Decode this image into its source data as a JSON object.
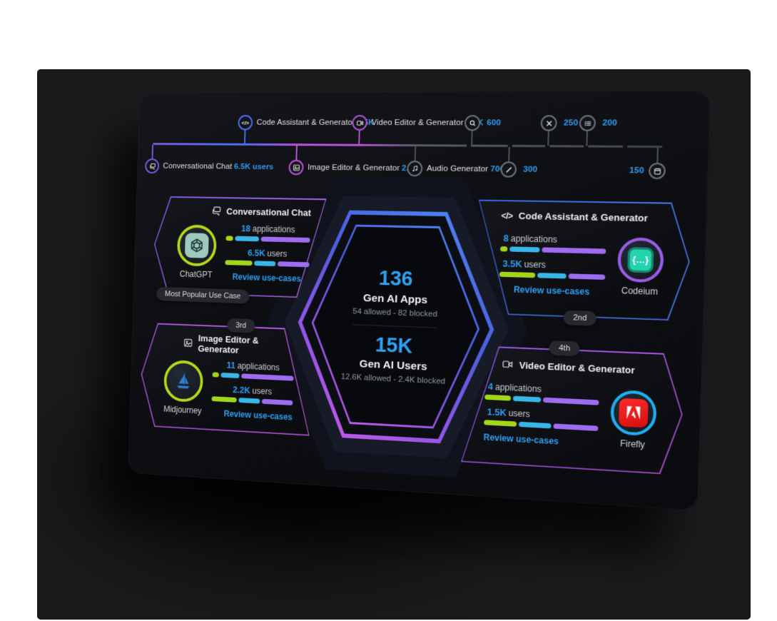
{
  "timeline": {
    "items": [
      {
        "label": "Conversational Chat",
        "value": "6.5K users",
        "icon": "chat-icon",
        "side": "below",
        "color": "#7a5ae0"
      },
      {
        "label": "Code Assistant & Generator",
        "value": "3.5K",
        "icon": "code-icon",
        "side": "above",
        "color": "#4b6ff5"
      },
      {
        "label": "Image Editor & Generator",
        "value": "2.2K",
        "icon": "image-icon",
        "side": "below",
        "color": "#c24fe2"
      },
      {
        "label": "Video Editor & Generator",
        "value": "1.5K",
        "icon": "video-icon",
        "side": "above",
        "color": "#b44fd8"
      },
      {
        "label": "Audio Generator",
        "value": "700",
        "icon": "audio-icon",
        "side": "below",
        "color": "#6b7078"
      },
      {
        "label": "",
        "value": "600",
        "icon": "search-icon",
        "side": "above",
        "color": "#6b7078"
      },
      {
        "label": "",
        "value": "300",
        "icon": "pencil-icon",
        "side": "below",
        "color": "#6b7078"
      },
      {
        "label": "",
        "value": "250",
        "icon": "tools-icon",
        "side": "above",
        "color": "#6b7078"
      },
      {
        "label": "",
        "value": "200",
        "icon": "list-icon",
        "side": "above",
        "color": "#6b7078"
      },
      {
        "label": "",
        "value": "150",
        "icon": "calendar-icon",
        "side": "below",
        "color": "#6b7078"
      }
    ]
  },
  "hexagon": {
    "apps_count": "136",
    "apps_title": "Gen AI Apps",
    "apps_detail": "54 allowed - 82 blocked",
    "users_count": "15K",
    "users_title": "Gen AI Users",
    "users_detail": "12.6K allowed - 2.4K blocked"
  },
  "cards": [
    {
      "title": "Conversational Chat",
      "icon": "chat-icon",
      "app": "ChatGPT",
      "ring_color": "#b5d916",
      "apps_value": "18",
      "apps_label": "applications",
      "apps_bar": [
        9,
        30,
        61
      ],
      "users_value": "6.5K",
      "users_label": "users",
      "users_bar": [
        34,
        27,
        39
      ],
      "link": "Review use-cases",
      "badge": "Most Popular Use Case"
    },
    {
      "title": "Code Assistant & Generator",
      "icon": "code-icon",
      "app": "Codeium",
      "ring_color": "#9a5ce8",
      "apps_value": "8",
      "apps_label": "applications",
      "apps_bar": [
        7,
        30,
        63
      ],
      "users_value": "3.5K",
      "users_label": "users",
      "users_bar": [
        36,
        28,
        36
      ],
      "link": "Review use-cases",
      "badge": "2nd",
      "logo_glyph": "{…}"
    },
    {
      "title": "Image Editor & Generator",
      "icon": "image-icon",
      "app": "Midjourney",
      "ring_color": "#b5d916",
      "apps_value": "11",
      "apps_label": "applications",
      "apps_bar": [
        9,
        24,
        67
      ],
      "users_value": "2.2K",
      "users_label": "users",
      "users_bar": [
        33,
        27,
        40
      ],
      "link": "Review use-cases",
      "badge": "3rd"
    },
    {
      "title": "Video Editor & Generator",
      "icon": "video-icon",
      "app": "Firefly",
      "ring_color": "#1faff2",
      "apps_value": "4",
      "apps_label": "applications",
      "apps_bar": [
        24,
        26,
        50
      ],
      "users_value": "1.5K",
      "users_label": "users",
      "users_bar": [
        30,
        30,
        40
      ],
      "link": "Review use-cases",
      "badge": "4th"
    }
  ],
  "colors": {
    "accent_blue": "#2f9df0",
    "bar_green": "#a3d617",
    "bar_cyan": "#36b7e8",
    "bar_purple": "#9e6cf0",
    "line_purple": "#7a5ae0",
    "line_blue": "#4b6ff5",
    "line_magenta": "#c24fe2",
    "line_gray": "#4a4f57"
  }
}
